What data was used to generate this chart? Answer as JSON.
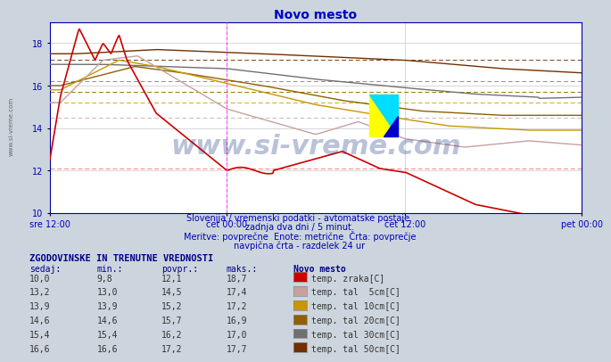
{
  "title": "Novo mesto",
  "background_color": "#ccd5dd",
  "plot_bg_color": "#ffffff",
  "grid_color": "#c8c8c8",
  "xlabel_ticks": [
    "sre 12:00",
    "čet 00:00",
    "čet 12:00",
    "pet 00:00"
  ],
  "xlabel_tick_positions": [
    0.0,
    0.333,
    0.667,
    1.0
  ],
  "ylim": [
    10,
    19
  ],
  "yticks": [
    10,
    12,
    14,
    16,
    18
  ],
  "num_points": 576,
  "vline_positions": [
    0.333,
    1.0
  ],
  "vline_color": "#ff44ff",
  "series": {
    "temp_zraka": {
      "color": "#cc0000",
      "label": "temp. zraka[C]",
      "avg": 12.1,
      "min": 9.8,
      "max": 18.7,
      "current": 10.0,
      "dashed_color": "#ff8080"
    },
    "temp_5cm": {
      "color": "#c8a0a0",
      "label": "temp. tal  5cm[C]",
      "avg": 14.5,
      "min": 13.0,
      "max": 17.4,
      "current": 13.2,
      "dashed_color": "#d4b4b4"
    },
    "temp_10cm": {
      "color": "#c89600",
      "label": "temp. tal 10cm[C]",
      "avg": 15.2,
      "min": 13.9,
      "max": 17.2,
      "current": 13.9,
      "dashed_color": "#d4a818"
    },
    "temp_20cm": {
      "color": "#906000",
      "label": "temp. tal 20cm[C]",
      "avg": 15.7,
      "min": 14.6,
      "max": 16.9,
      "current": 14.6,
      "dashed_color": "#a07010"
    },
    "temp_30cm": {
      "color": "#707070",
      "label": "temp. tal 30cm[C]",
      "avg": 16.2,
      "min": 15.4,
      "max": 17.0,
      "current": 15.4,
      "dashed_color": "#909090"
    },
    "temp_50cm": {
      "color": "#703000",
      "label": "temp. tal 50cm[C]",
      "avg": 17.2,
      "min": 16.6,
      "max": 17.7,
      "current": 16.6,
      "dashed_color": "#804010"
    }
  },
  "watermark": "www.si-vreme.com",
  "subtitle_lines": [
    "Slovenija / vremenski podatki - avtomatske postaje.",
    "zadnja dva dni / 5 minut.",
    "Meritve: povprečne  Enote: metrične  Črta: povprečje",
    "navpična črta - razdelek 24 ur"
  ],
  "table_header": "ZGODOVINSKE IN TRENUTNE VREDNOSTI",
  "table_cols": [
    "sedaj:",
    "min.:",
    "povpr.:",
    "maks.:",
    "Novo mesto"
  ],
  "table_rows": [
    [
      "10,0",
      "9,8",
      "12,1",
      "18,7",
      "temp. zraka[C]",
      "#cc0000"
    ],
    [
      "13,2",
      "13,0",
      "14,5",
      "17,4",
      "temp. tal  5cm[C]",
      "#c8a0a0"
    ],
    [
      "13,9",
      "13,9",
      "15,2",
      "17,2",
      "temp. tal 10cm[C]",
      "#c89600"
    ],
    [
      "14,6",
      "14,6",
      "15,7",
      "16,9",
      "temp. tal 20cm[C]",
      "#906000"
    ],
    [
      "15,4",
      "15,4",
      "16,2",
      "17,0",
      "temp. tal 30cm[C]",
      "#707070"
    ],
    [
      "16,6",
      "16,6",
      "17,2",
      "17,7",
      "temp. tal 50cm[C]",
      "#703000"
    ]
  ]
}
